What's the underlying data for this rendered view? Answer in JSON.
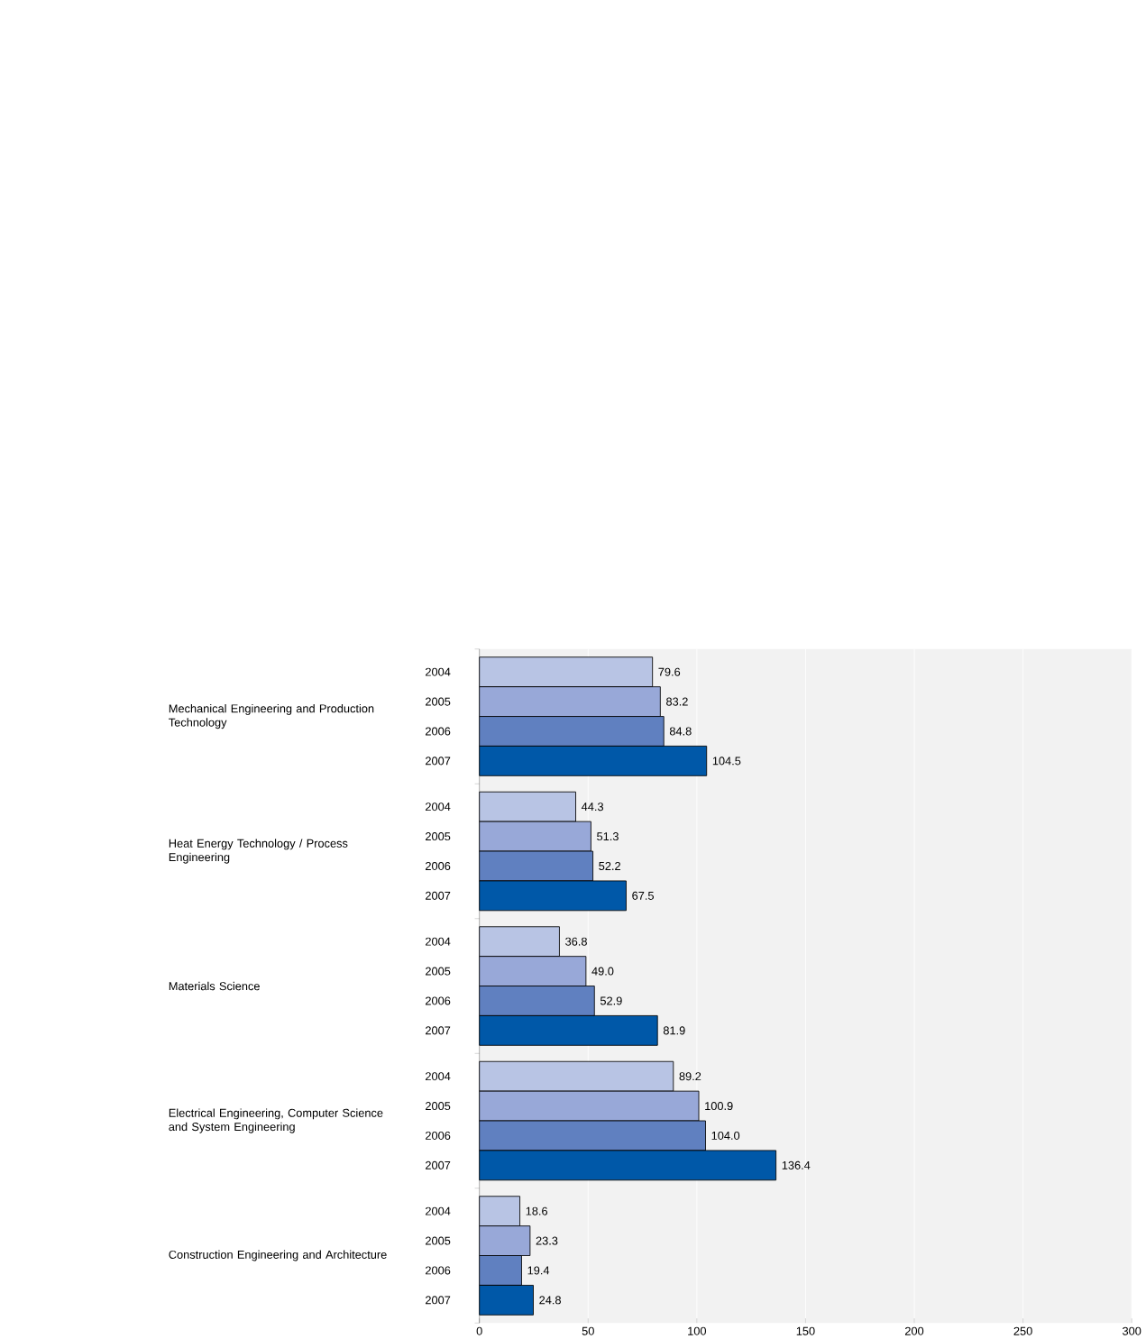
{
  "chart_data": {
    "type": "bar",
    "orientation": "horizontal",
    "categories": [
      "Mechanical Engineering and Production Technology",
      "Heat Energy Technology / Process Engineering",
      "Materials Science",
      "Electrical Engineering, Computer Science and System Engineering",
      "Construction Engineering and Architecture"
    ],
    "series": [
      {
        "name": "2004",
        "color": "#b8c4e4",
        "values": [
          79.6,
          44.3,
          36.8,
          89.2,
          18.6
        ],
        "value_labels": [
          "79.6",
          "44.3",
          "36.8",
          "89.2",
          "18.6"
        ]
      },
      {
        "name": "2005",
        "color": "#98a8d8",
        "values": [
          83.2,
          51.3,
          49.0,
          100.9,
          23.3
        ],
        "value_labels": [
          "83.2",
          "51.3",
          "49.0",
          "100.9",
          "23.3"
        ]
      },
      {
        "name": "2006",
        "color": "#6080c0",
        "values": [
          84.8,
          52.2,
          52.9,
          104.0,
          19.4
        ],
        "value_labels": [
          "84.8",
          "52.2",
          "52.9",
          "104.0",
          "19.4"
        ]
      },
      {
        "name": "2007",
        "color": "#0058a8",
        "values": [
          104.5,
          67.5,
          81.9,
          136.4,
          24.8
        ],
        "value_labels": [
          "104.5",
          "67.5",
          "81.9",
          "136.4",
          "24.8"
        ]
      }
    ],
    "xlim": [
      0,
      300
    ],
    "xticks": [
      0,
      50,
      100,
      150,
      200,
      250,
      300
    ],
    "grid": "x"
  }
}
